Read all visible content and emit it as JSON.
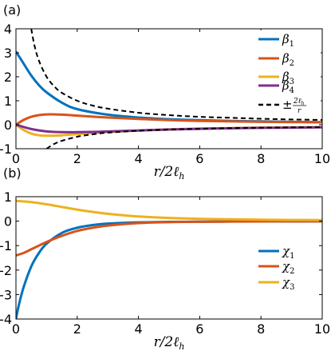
{
  "chart_data": [
    {
      "panel_label": "(a)",
      "type": "line",
      "xlabel": "r/2ℓh",
      "xlim": [
        0,
        10
      ],
      "ylim": [
        -1,
        4
      ],
      "xticks": [
        "0",
        "2",
        "4",
        "6",
        "8",
        "10"
      ],
      "yticks": [
        "-1",
        "0",
        "1",
        "2",
        "3",
        "4"
      ],
      "grid": false,
      "legend_position": "top-right",
      "series": [
        {
          "name": "β1",
          "color": "#0072BD",
          "style": "solid",
          "x": [
            0,
            0.25,
            0.5,
            0.75,
            1,
            1.5,
            2,
            3,
            4,
            5,
            6,
            7,
            8,
            9,
            10
          ],
          "y": [
            3.05,
            2.55,
            2.05,
            1.65,
            1.35,
            0.92,
            0.65,
            0.42,
            0.3,
            0.23,
            0.19,
            0.16,
            0.14,
            0.12,
            0.11
          ]
        },
        {
          "name": "β2",
          "color": "#D95319",
          "style": "solid",
          "x": [
            0,
            0.25,
            0.5,
            0.75,
            1,
            1.5,
            2,
            3,
            4,
            5,
            6,
            7,
            8,
            9,
            10
          ],
          "y": [
            0,
            0.2,
            0.33,
            0.4,
            0.43,
            0.42,
            0.38,
            0.3,
            0.24,
            0.19,
            0.16,
            0.14,
            0.12,
            0.11,
            0.1
          ]
        },
        {
          "name": "β3",
          "color": "#EDB120",
          "style": "solid",
          "x": [
            0,
            0.25,
            0.5,
            0.75,
            1,
            1.5,
            2,
            3,
            4,
            5,
            6,
            7,
            8,
            9,
            10
          ],
          "y": [
            0,
            -0.22,
            -0.37,
            -0.44,
            -0.46,
            -0.44,
            -0.39,
            -0.31,
            -0.24,
            -0.19,
            -0.16,
            -0.14,
            -0.12,
            -0.11,
            -0.1
          ]
        },
        {
          "name": "β4",
          "color": "#7E2F8E",
          "style": "solid",
          "x": [
            0,
            0.5,
            1,
            1.5,
            2,
            2.5,
            3,
            4,
            5,
            6,
            7,
            8,
            9,
            10
          ],
          "y": [
            0,
            -0.18,
            -0.28,
            -0.31,
            -0.31,
            -0.3,
            -0.28,
            -0.24,
            -0.2,
            -0.17,
            -0.15,
            -0.13,
            -0.12,
            -0.11
          ]
        },
        {
          "name": "±2ℓh/r",
          "color": "#000000",
          "style": "dashed",
          "x": [
            0.5,
            0.6,
            0.75,
            1,
            1.25,
            1.5,
            2,
            2.5,
            3,
            4,
            5,
            6,
            7,
            8,
            9,
            10
          ],
          "y": [
            4,
            3.33,
            2.67,
            2,
            1.6,
            1.33,
            1,
            0.8,
            0.67,
            0.5,
            0.4,
            0.33,
            0.29,
            0.25,
            0.22,
            0.2
          ]
        },
        {
          "name": "",
          "color": "#000000",
          "style": "dashed",
          "x": [
            1,
            1.25,
            1.5,
            2,
            2.5,
            3,
            4,
            5,
            6,
            7,
            8,
            9,
            10
          ],
          "y": [
            -1,
            -0.8,
            -0.67,
            -0.5,
            -0.4,
            -0.33,
            -0.25,
            -0.2,
            -0.17,
            -0.14,
            -0.125,
            -0.11,
            -0.1
          ]
        }
      ]
    },
    {
      "panel_label": "(b)",
      "type": "line",
      "xlabel": "r/2ℓh",
      "xlim": [
        0,
        10
      ],
      "ylim": [
        -4,
        1
      ],
      "xticks": [
        "0",
        "2",
        "4",
        "6",
        "8",
        "10"
      ],
      "yticks": [
        "-4",
        "-3",
        "-2",
        "-1",
        "0",
        "1"
      ],
      "grid": false,
      "legend_position": "right",
      "series": [
        {
          "name": "χ1",
          "color": "#0072BD",
          "style": "solid",
          "x": [
            0,
            0.1,
            0.25,
            0.5,
            0.75,
            1,
            1.5,
            2,
            2.5,
            3,
            4,
            5,
            6,
            7,
            8,
            9,
            10
          ],
          "y": [
            -4,
            -3.4,
            -2.7,
            -1.85,
            -1.3,
            -0.92,
            -0.48,
            -0.27,
            -0.16,
            -0.1,
            -0.05,
            -0.03,
            -0.02,
            -0.015,
            -0.01,
            -0.008,
            -0.006
          ]
        },
        {
          "name": "χ2",
          "color": "#D95319",
          "style": "solid",
          "x": [
            0,
            0.25,
            0.5,
            0.75,
            1,
            1.5,
            2,
            2.5,
            3,
            4,
            5,
            6,
            7,
            8,
            9,
            10
          ],
          "y": [
            -1.4,
            -1.3,
            -1.15,
            -1.0,
            -0.85,
            -0.6,
            -0.4,
            -0.27,
            -0.18,
            -0.08,
            -0.04,
            -0.025,
            -0.018,
            -0.012,
            -0.009,
            -0.007
          ]
        },
        {
          "name": "χ3",
          "color": "#EDB120",
          "style": "solid",
          "x": [
            0,
            0.5,
            1,
            1.5,
            2,
            2.5,
            3,
            3.5,
            4,
            5,
            6,
            7,
            8,
            9,
            10
          ],
          "y": [
            0.83,
            0.78,
            0.69,
            0.58,
            0.47,
            0.38,
            0.3,
            0.24,
            0.19,
            0.13,
            0.095,
            0.075,
            0.06,
            0.05,
            0.045
          ]
        }
      ]
    }
  ]
}
